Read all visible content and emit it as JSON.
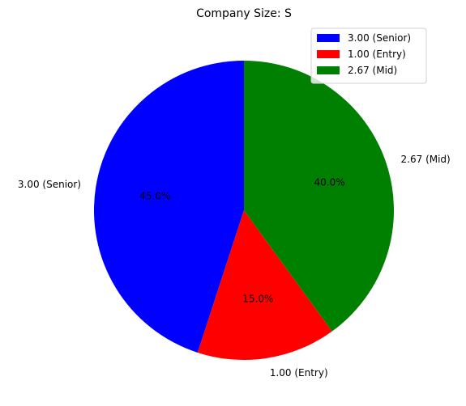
{
  "chart_data": {
    "type": "pie",
    "title": "Company Size: S",
    "labels": [
      "3.00 (Senior)",
      "1.00 (Entry)",
      "2.67 (Mid)"
    ],
    "values": [
      45.0,
      15.0,
      40.0
    ],
    "percent_labels": [
      "45.0%",
      "15.0%",
      "40.0%"
    ],
    "colors": [
      "#0000ff",
      "#ff0000",
      "#008000"
    ],
    "start_angle_deg": 90,
    "direction": "counterclockwise",
    "legend": {
      "placement": "upper-right",
      "entries": [
        "3.00 (Senior)",
        "1.00 (Entry)",
        "2.67 (Mid)"
      ]
    }
  }
}
